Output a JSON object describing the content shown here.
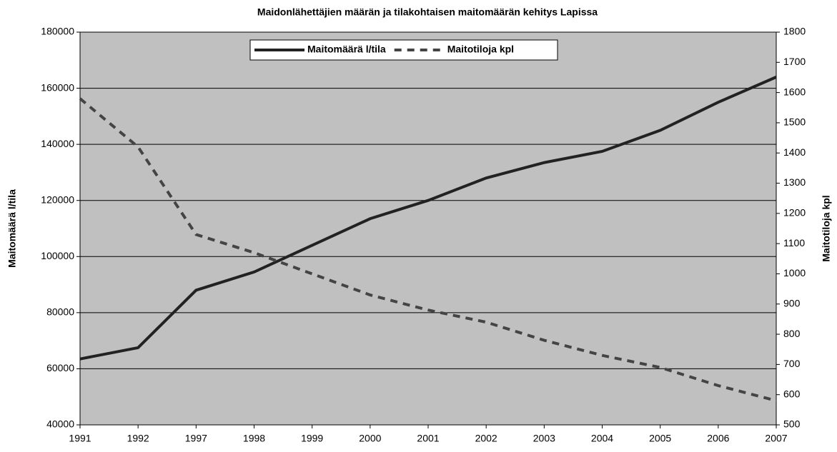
{
  "chart_data": {
    "type": "line",
    "title": "Maidonlähettäjien määrän  ja tilakohtaisen maitomäärän kehitys Lapissa",
    "ylabel": "Maitomäärä l/tila",
    "y2label": "Maitotiloja kpl",
    "categories": [
      "1991",
      "1992",
      "1997",
      "1998",
      "1999",
      "2000",
      "2001",
      "2002",
      "2003",
      "2004",
      "2005",
      "2006",
      "2007"
    ],
    "series": [
      {
        "name": "Maitomäärä l/tila",
        "color": "#222222",
        "dash": false,
        "values": [
          63500,
          67500,
          88000,
          94500,
          104000,
          113500,
          120000,
          128000,
          133500,
          137500,
          145000,
          155000,
          164000
        ]
      },
      {
        "name": "Maitotiloja kpl",
        "color": "#444444",
        "dash": true,
        "axis": "y2",
        "values": [
          1580,
          1420,
          1130,
          1070,
          1000,
          930,
          880,
          840,
          780,
          730,
          690,
          630,
          580
        ]
      }
    ],
    "ylim": [
      40000,
      180000
    ],
    "yticks": [
      40000,
      60000,
      80000,
      100000,
      120000,
      140000,
      160000,
      180000
    ],
    "y2lim": [
      500,
      1800
    ],
    "y2ticks": [
      500,
      600,
      700,
      800,
      900,
      1000,
      1100,
      1200,
      1300,
      1400,
      1500,
      1600,
      1700,
      1800
    ],
    "grid": true,
    "legend": "top"
  }
}
